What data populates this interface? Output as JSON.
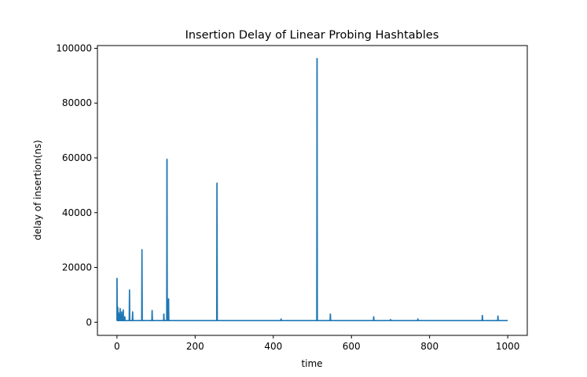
{
  "chart_data": {
    "type": "line",
    "title": "Insertion Delay of Linear Probing Hashtables",
    "xlabel": "time",
    "ylabel": "delay of insertion(ns)",
    "xlim": [
      -50,
      1050
    ],
    "ylim": [
      -4800,
      101000
    ],
    "xticks": [
      0,
      200,
      400,
      600,
      800,
      1000
    ],
    "yticks": [
      0,
      20000,
      40000,
      60000,
      80000,
      100000
    ],
    "grid": false,
    "legend": "none",
    "series": [
      {
        "color": "#1f77b4",
        "baseline": 600,
        "x_range": [
          0,
          1000
        ],
        "spikes": [
          {
            "x": 0,
            "y": 16000
          },
          {
            "x": 2,
            "y": 5500
          },
          {
            "x": 4,
            "y": 3500
          },
          {
            "x": 6,
            "y": 2800
          },
          {
            "x": 8,
            "y": 5000
          },
          {
            "x": 12,
            "y": 3800
          },
          {
            "x": 16,
            "y": 4500
          },
          {
            "x": 20,
            "y": 2000
          },
          {
            "x": 32,
            "y": 11800
          },
          {
            "x": 40,
            "y": 3800
          },
          {
            "x": 64,
            "y": 26500
          },
          {
            "x": 90,
            "y": 4300
          },
          {
            "x": 120,
            "y": 3000
          },
          {
            "x": 128,
            "y": 59500
          },
          {
            "x": 132,
            "y": 8500
          },
          {
            "x": 256,
            "y": 50800
          },
          {
            "x": 420,
            "y": 1200
          },
          {
            "x": 512,
            "y": 96300
          },
          {
            "x": 546,
            "y": 3000
          },
          {
            "x": 657,
            "y": 2000
          },
          {
            "x": 700,
            "y": 1000
          },
          {
            "x": 770,
            "y": 1200
          },
          {
            "x": 935,
            "y": 2500
          },
          {
            "x": 975,
            "y": 2300
          }
        ]
      }
    ]
  }
}
